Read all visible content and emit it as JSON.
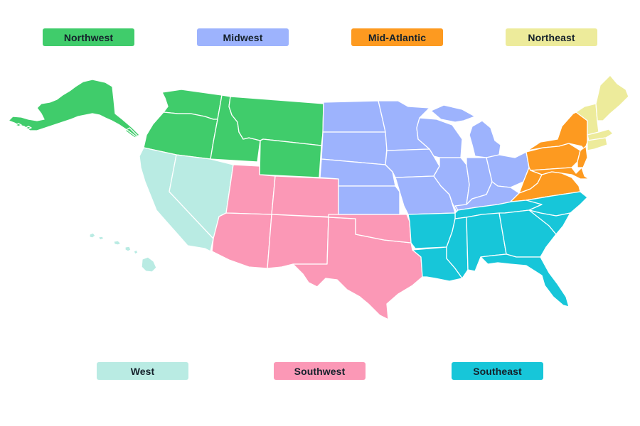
{
  "regions": {
    "northwest": {
      "label": "Northwest",
      "color": "#40cc6b"
    },
    "midwest": {
      "label": "Midwest",
      "color": "#9db3fd"
    },
    "midatlantic": {
      "label": "Mid-Atlantic",
      "color": "#fd9a20"
    },
    "northeast": {
      "label": "Northeast",
      "color": "#edeb9b"
    },
    "west": {
      "label": "West",
      "color": "#b9ebe3"
    },
    "southwest": {
      "label": "Southwest",
      "color": "#fb98b6"
    },
    "southeast": {
      "label": "Southeast",
      "color": "#17c6d9"
    }
  },
  "text_color": "#15212b",
  "border_color": "#ffffff"
}
